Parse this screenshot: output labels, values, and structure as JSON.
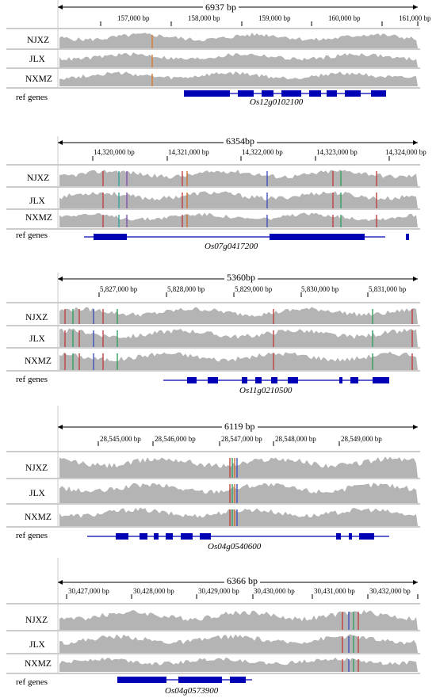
{
  "colors": {
    "coverage": "#b4b4b4",
    "gene": "#0000b4",
    "divider": "#9a9a9a",
    "axis": "#000000"
  },
  "panels": [
    {
      "span": "6937 bp",
      "ticks": [
        "157,000 bp",
        "158,000 bp",
        "159,000 bp",
        "160,000 bp",
        "161,000 bp"
      ],
      "tracks": [
        "NJXZ",
        "JLX",
        "NXMZ"
      ],
      "ref_label": "ref genes",
      "gene": "Os12g0102100"
    },
    {
      "span": "6354bp",
      "ticks": [
        "14,320,000 bp",
        "14,321,000 bp",
        "14,322,000 bp",
        "14,323,000 bp",
        "14,324,000 bp"
      ],
      "tracks": [
        "NJXZ",
        "JLX",
        "NXMZ"
      ],
      "ref_label": "ref genes",
      "gene": "Os07g0417200"
    },
    {
      "span": "5360bp",
      "ticks": [
        "5,827,000 bp",
        "5,828,000 bp",
        "5,829,000 bp",
        "5,830,000 bp",
        "5,831,000 bp"
      ],
      "tracks": [
        "NJXZ",
        "JLX",
        "NXMZ"
      ],
      "ref_label": "ref genes",
      "gene": "Os11g0210500"
    },
    {
      "span": "6119 bp",
      "ticks": [
        "28,545,000 bp",
        "28,546,000 bp",
        "28,547,000 bp",
        "28,548,000 bp",
        "28,549,000 bp"
      ],
      "tracks": [
        "NJXZ",
        "JLX",
        "NXMZ"
      ],
      "ref_label": "ref genes",
      "gene": "Os04g0540600"
    },
    {
      "span": "6366 bp",
      "ticks": [
        "30,427,000 bp",
        "30,428,000 bp",
        "30,429,000 bp",
        "30,430,000 bp",
        "30,431,000 bp",
        "30,432,000 bp"
      ],
      "tracks": [
        "NJXZ",
        "JLX",
        "NXMZ"
      ],
      "ref_label": "ref genes",
      "gene": "Os04g0573900"
    }
  ]
}
